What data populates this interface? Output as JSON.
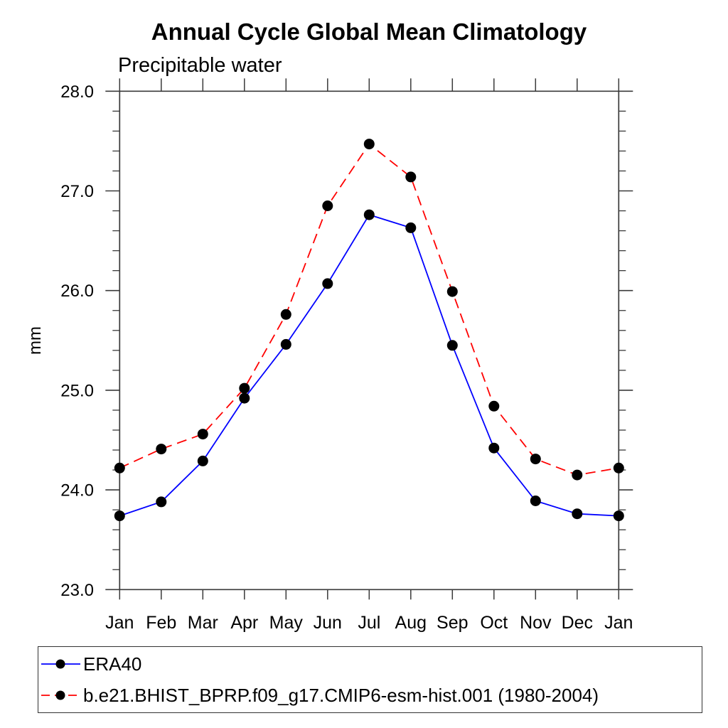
{
  "title": "Annual Cycle Global Mean Climatology",
  "subtitle": "Precipitable water",
  "ylabel": "mm",
  "colors": {
    "era40_line": "#0000ff",
    "model_line": "#ff0000",
    "marker": "#000000",
    "axis": "#3a3a3a",
    "background": "#ffffff"
  },
  "legend": {
    "entries": [
      {
        "label": "ERA40",
        "style": "solid",
        "color": "#0000ff"
      },
      {
        "label": "b.e21.BHIST_BPRP.f09_g17.CMIP6-esm-hist.001 (1980-2004)",
        "style": "dashed",
        "color": "#ff0000"
      }
    ]
  },
  "chart_data": {
    "type": "line",
    "title": "Annual Cycle Global Mean Climatology",
    "subtitle": "Precipitable water",
    "xlabel": "",
    "ylabel": "mm",
    "categories": [
      "Jan",
      "Feb",
      "Mar",
      "Apr",
      "May",
      "Jun",
      "Jul",
      "Aug",
      "Sep",
      "Oct",
      "Nov",
      "Dec",
      "Jan"
    ],
    "series": [
      {
        "name": "ERA40",
        "color": "#0000ff",
        "dash": "none",
        "marker": "filled-circle",
        "marker_color": "#000000",
        "values": [
          23.74,
          23.88,
          24.29,
          24.92,
          25.46,
          26.07,
          26.76,
          26.63,
          25.45,
          24.42,
          23.89,
          23.76,
          23.74
        ]
      },
      {
        "name": "b.e21.BHIST_BPRP.f09_g17.CMIP6-esm-hist.001 (1980-2004)",
        "color": "#ff0000",
        "dash": "14 8",
        "marker": "filled-circle",
        "marker_color": "#000000",
        "values": [
          24.22,
          24.41,
          24.56,
          25.02,
          25.76,
          26.85,
          27.47,
          27.14,
          25.99,
          24.84,
          24.31,
          24.15,
          24.22
        ]
      }
    ],
    "ylim": [
      23.0,
      28.0
    ],
    "ytick_major": 1.0,
    "ytick_minor": 0.2,
    "ytick_labels": [
      "23.0",
      "24.0",
      "25.0",
      "26.0",
      "27.0",
      "28.0"
    ],
    "grid": false,
    "legend_position": "bottom"
  }
}
